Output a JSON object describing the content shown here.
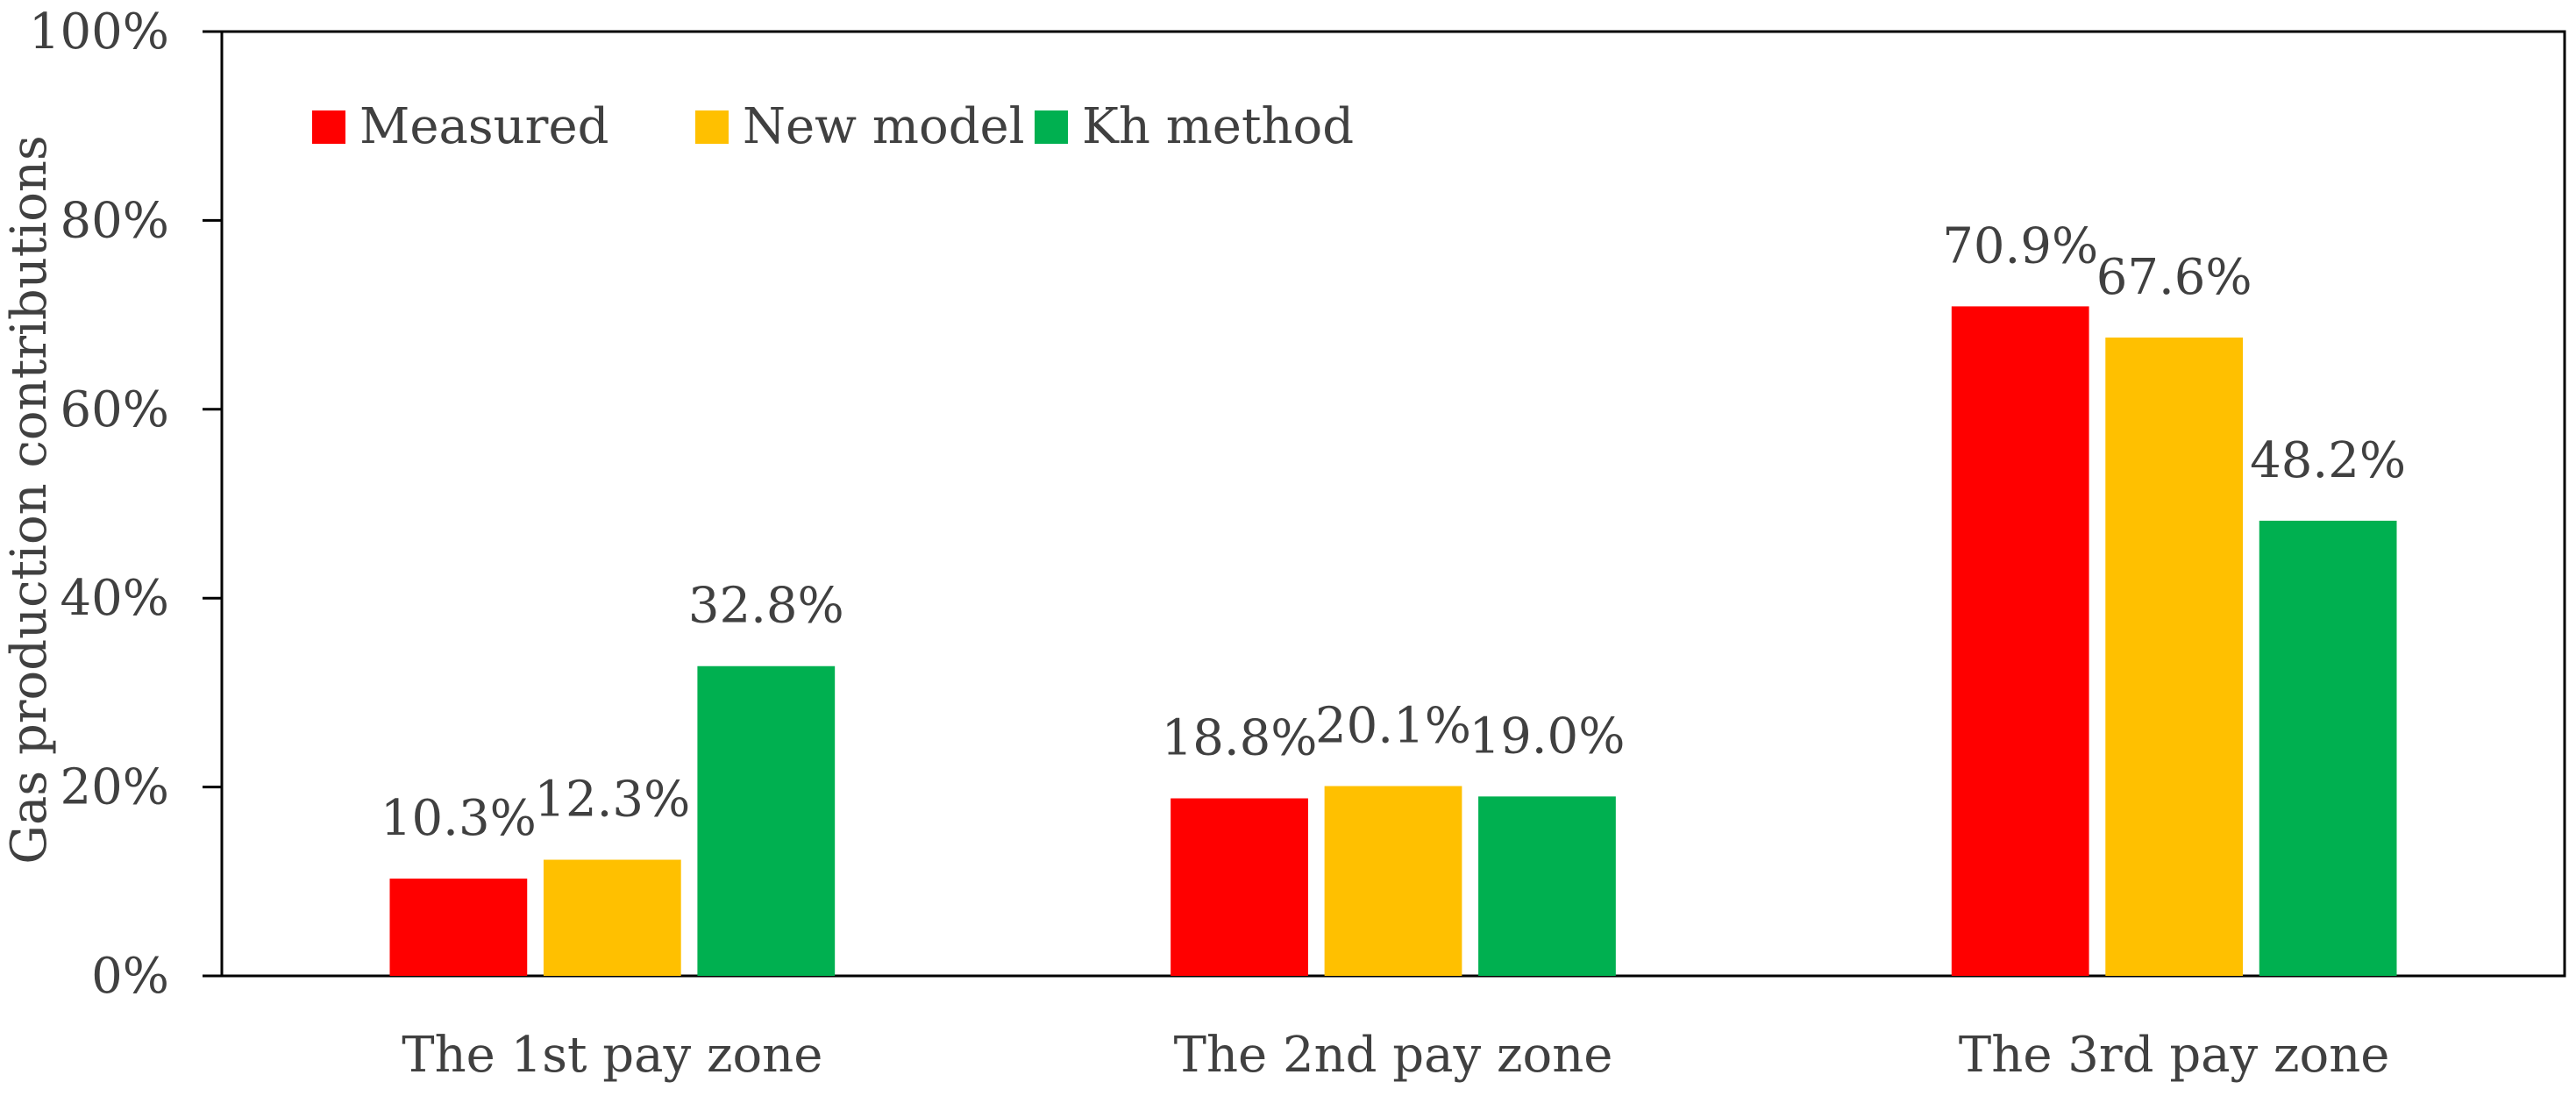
{
  "chart_data": {
    "type": "bar",
    "title": "",
    "xlabel": "",
    "ylabel": "Gas production contributions",
    "ylim": [
      0,
      100
    ],
    "yticks": [
      "0%",
      "20%",
      "40%",
      "60%",
      "80%",
      "100%"
    ],
    "grid": false,
    "legend_position": "top-left",
    "categories": [
      "The 1st pay zone",
      "The 2nd pay zone",
      "The 3rd pay zone"
    ],
    "series": [
      {
        "name": "Measured",
        "color": "#ff0000",
        "values": [
          10.3,
          18.8,
          70.9
        ],
        "labels": [
          "10.3%",
          "18.8%",
          "70.9%"
        ]
      },
      {
        "name": "New model",
        "color": "#ffc000",
        "values": [
          12.3,
          20.1,
          67.6
        ],
        "labels": [
          "12.3%",
          "20.1%",
          "67.6%"
        ]
      },
      {
        "name": "Kh method",
        "color": "#00b050",
        "values": [
          32.8,
          19.0,
          48.2
        ],
        "labels": [
          "32.8%",
          "19.0%",
          "48.2%"
        ]
      }
    ]
  }
}
